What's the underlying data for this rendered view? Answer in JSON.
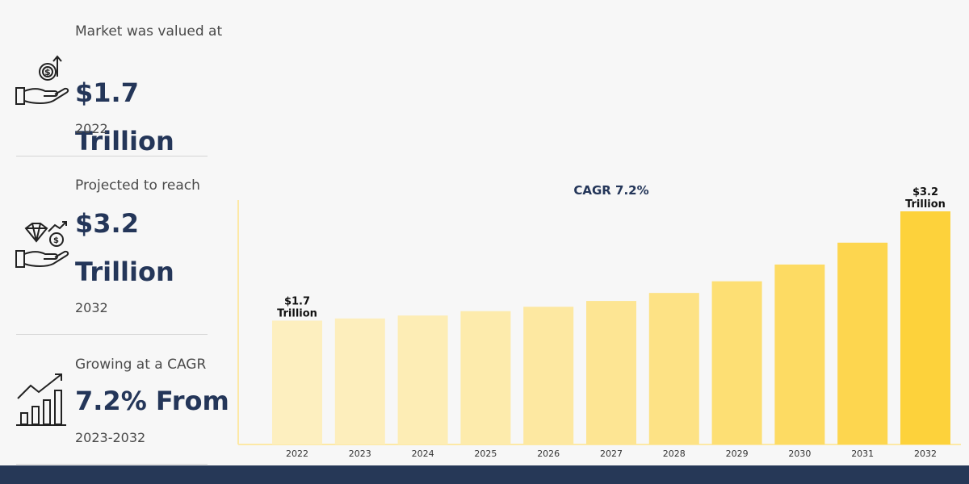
{
  "stats": [
    {
      "label": "Market was valued at",
      "value": "$1.7 Trillion",
      "sub": "2022",
      "icon": "money-hand-icon"
    },
    {
      "label": "Projected to reach",
      "value": "$3.2 Trillion",
      "sub": "2032",
      "icon": "diamond-hand-icon"
    },
    {
      "label": "Growing at a CAGR",
      "value": "7.2% From",
      "sub": "2023-2032",
      "icon": "growth-chart-icon"
    }
  ],
  "colors": {
    "navy": "#243659",
    "bar_light": "#fdefbf",
    "bar_dark": "#fdd23b",
    "axis": "#fde9a6"
  },
  "chart_data": {
    "type": "bar",
    "title": "CAGR 7.2%",
    "categories": [
      "2022",
      "2023",
      "2024",
      "2025",
      "2026",
      "2027",
      "2028",
      "2029",
      "2030",
      "2031",
      "2032"
    ],
    "values": [
      1.7,
      1.73,
      1.77,
      1.83,
      1.89,
      1.97,
      2.08,
      2.24,
      2.47,
      2.77,
      3.2
    ],
    "annotations": [
      {
        "category": "2022",
        "line1": "$1.7",
        "line2": "Trillion"
      },
      {
        "category": "2032",
        "line1": "$3.2",
        "line2": "Trillion"
      }
    ],
    "xlabel": "",
    "ylabel": "",
    "ylim": [
      0,
      3.2
    ],
    "grid": false
  }
}
